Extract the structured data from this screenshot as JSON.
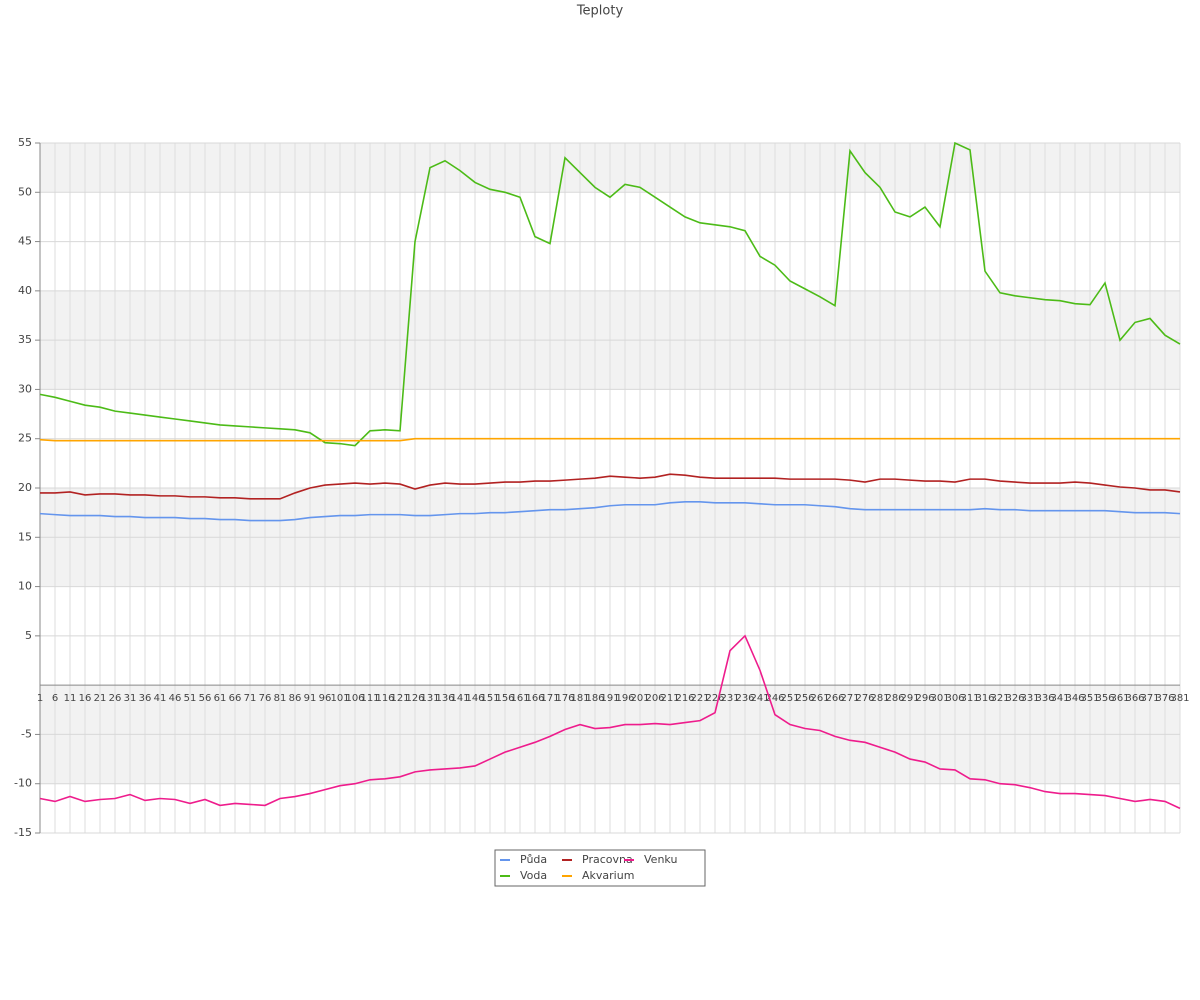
{
  "chart_data": {
    "type": "line",
    "title": "Teploty",
    "categories": [
      "1",
      "6",
      "11",
      "16",
      "21",
      "26",
      "31",
      "36",
      "41",
      "46",
      "51",
      "56",
      "61",
      "66",
      "71",
      "76",
      "81",
      "86",
      "91",
      "96",
      "101",
      "106",
      "111",
      "116",
      "121",
      "126",
      "131",
      "136",
      "141",
      "146",
      "151",
      "156",
      "161",
      "166",
      "171",
      "176",
      "181",
      "186",
      "191",
      "196",
      "201",
      "206",
      "211",
      "216",
      "221",
      "226",
      "231",
      "236",
      "241",
      "246",
      "251",
      "256",
      "261",
      "266",
      "271",
      "276",
      "281",
      "286",
      "291",
      "296",
      "301",
      "306",
      "311",
      "316",
      "321",
      "326",
      "331",
      "336",
      "341",
      "346",
      "351",
      "356",
      "361",
      "366",
      "371",
      "376",
      "381"
    ],
    "series": [
      {
        "name": "Půda",
        "color": "#6495ed",
        "values": [
          17.4,
          17.3,
          17.2,
          17.2,
          17.2,
          17.1,
          17.1,
          17.0,
          17.0,
          17.0,
          16.9,
          16.9,
          16.8,
          16.8,
          16.7,
          16.7,
          16.7,
          16.8,
          17.0,
          17.1,
          17.2,
          17.2,
          17.3,
          17.3,
          17.3,
          17.2,
          17.2,
          17.3,
          17.4,
          17.4,
          17.5,
          17.5,
          17.6,
          17.7,
          17.8,
          17.8,
          17.9,
          18.0,
          18.2,
          18.3,
          18.3,
          18.3,
          18.5,
          18.6,
          18.6,
          18.5,
          18.5,
          18.5,
          18.4,
          18.3,
          18.3,
          18.3,
          18.2,
          18.1,
          17.9,
          17.8,
          17.8,
          17.8,
          17.8,
          17.8,
          17.8,
          17.8,
          17.8,
          17.9,
          17.8,
          17.8,
          17.7,
          17.7,
          17.7,
          17.7,
          17.7,
          17.7,
          17.6,
          17.5,
          17.5,
          17.5,
          17.4
        ]
      },
      {
        "name": "Voda",
        "color": "#4cbb17",
        "values": [
          29.5,
          29.2,
          28.8,
          28.4,
          28.2,
          27.8,
          27.6,
          27.4,
          27.2,
          27.0,
          26.8,
          26.6,
          26.4,
          26.3,
          26.2,
          26.1,
          26.0,
          25.9,
          25.6,
          24.6,
          24.5,
          24.3,
          25.8,
          25.9,
          25.8,
          45,
          52.5,
          53.2,
          52.2,
          51,
          50.3,
          50,
          49.5,
          45.5,
          44.8,
          53.5,
          52,
          50.5,
          49.5,
          50.8,
          50.5,
          49.5,
          48.5,
          47.5,
          46.9,
          46.7,
          46.5,
          46.1,
          43.5,
          42.6,
          41,
          40.2,
          39.4,
          38.5,
          54.2,
          52,
          50.5,
          48,
          47.5,
          48.5,
          46.5,
          55,
          54.3,
          42,
          39.8,
          39.5,
          39.3,
          39.1,
          39,
          38.7,
          38.6,
          40.8,
          35,
          36.8,
          37.2,
          35.5,
          34.6
        ]
      },
      {
        "name": "Pracovna",
        "color": "#b22222",
        "values": [
          19.5,
          19.5,
          19.6,
          19.3,
          19.4,
          19.4,
          19.3,
          19.3,
          19.2,
          19.2,
          19.1,
          19.1,
          19.0,
          19.0,
          18.9,
          18.9,
          18.9,
          19.5,
          20.0,
          20.3,
          20.4,
          20.5,
          20.4,
          20.5,
          20.4,
          19.9,
          20.3,
          20.5,
          20.4,
          20.4,
          20.5,
          20.6,
          20.6,
          20.7,
          20.7,
          20.8,
          20.9,
          21.0,
          21.2,
          21.1,
          21.0,
          21.1,
          21.4,
          21.3,
          21.1,
          21.0,
          21.0,
          21.0,
          21.0,
          21.0,
          20.9,
          20.9,
          20.9,
          20.9,
          20.8,
          20.6,
          20.9,
          20.9,
          20.8,
          20.7,
          20.7,
          20.6,
          20.9,
          20.9,
          20.7,
          20.6,
          20.5,
          20.5,
          20.5,
          20.6,
          20.5,
          20.3,
          20.1,
          20.0,
          19.8,
          19.8,
          19.6
        ]
      },
      {
        "name": "Akvarium",
        "color": "#ffa500",
        "values": [
          24.9,
          24.8,
          24.8,
          24.8,
          24.8,
          24.8,
          24.8,
          24.8,
          24.8,
          24.8,
          24.8,
          24.8,
          24.8,
          24.8,
          24.8,
          24.8,
          24.8,
          24.8,
          24.8,
          24.8,
          24.8,
          24.8,
          24.8,
          24.8,
          24.8,
          25.0,
          25.0,
          25.0,
          25.0,
          25.0,
          25.0,
          25.0,
          25.0,
          25.0,
          25.0,
          25.0,
          25.0,
          25.0,
          25.0,
          25.0,
          25.0,
          25.0,
          25.0,
          25.0,
          25.0,
          25.0,
          25.0,
          25.0,
          25.0,
          25.0,
          25.0,
          25.0,
          25.0,
          25.0,
          25.0,
          25.0,
          25.0,
          25.0,
          25.0,
          25.0,
          25.0,
          25.0,
          25.0,
          25.0,
          25.0,
          25.0,
          25.0,
          25.0,
          25.0,
          25.0,
          25.0,
          25.0,
          25.0,
          25.0,
          25.0,
          25.0,
          25.0
        ]
      },
      {
        "name": "Venku",
        "color": "#ee1c8c",
        "values": [
          -11.5,
          -11.8,
          -11.3,
          -11.8,
          -11.6,
          -11.5,
          -11.1,
          -11.7,
          -11.5,
          -11.6,
          -12.0,
          -11.6,
          -12.2,
          -12.0,
          -12.1,
          -12.2,
          -11.5,
          -11.3,
          -11.0,
          -10.6,
          -10.2,
          -10.0,
          -9.6,
          -9.5,
          -9.3,
          -8.8,
          -8.6,
          -8.5,
          -8.4,
          -8.2,
          -7.5,
          -6.8,
          -6.3,
          -5.8,
          -5.2,
          -4.5,
          -4.0,
          -4.4,
          -4.3,
          -4.0,
          -4.0,
          -3.9,
          -4.0,
          -3.8,
          -3.6,
          -2.8,
          3.5,
          5.0,
          1.5,
          -3.0,
          -4.0,
          -4.4,
          -4.6,
          -5.2,
          -5.6,
          -5.8,
          -6.3,
          -6.8,
          -7.5,
          -7.8,
          -8.5,
          -8.6,
          -9.5,
          -9.6,
          -10.0,
          -10.1,
          -10.4,
          -10.8,
          -11.0,
          -11.0,
          -11.1,
          -11.2,
          -11.5,
          -11.8,
          -11.6,
          -11.8,
          -12.5
        ]
      }
    ],
    "ylim": [
      -15,
      55
    ],
    "yticks": [
      -15,
      -10,
      -5,
      5,
      10,
      15,
      20,
      25,
      30,
      35,
      40,
      45,
      50,
      55
    ],
    "grid": true
  }
}
